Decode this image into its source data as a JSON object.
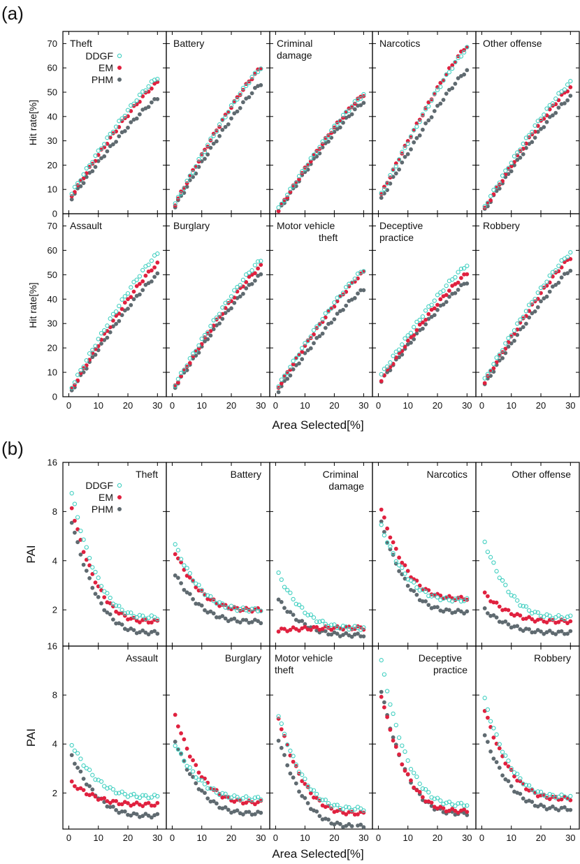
{
  "figure": {
    "panel_a_label": "(a)",
    "panel_b_label": "(b)",
    "xlabel": "Area Selected[%]",
    "colors": {
      "DDGF": "#3fcfc0",
      "EM": "#e0213f",
      "PHM": "#5f6a70"
    }
  },
  "chart_data": [
    {
      "type": "scatter",
      "id": "a",
      "ylabel": "Hit rate[%]",
      "xlabel": "Area Selected[%]",
      "xlim": [
        -2,
        33
      ],
      "ylim": [
        0,
        75
      ],
      "xticks": [
        0,
        10,
        20,
        30
      ],
      "yticks": [
        0,
        10,
        20,
        30,
        40,
        50,
        60,
        70
      ],
      "legend": [
        "DDGF",
        "EM",
        "PHM"
      ],
      "legend_location": "top-left of first subplot",
      "panels": [
        {
          "title": "Theft",
          "ddgf_end": 56,
          "em_end": 54,
          "phm_end": 47.5,
          "ddgf_start": 8.5,
          "em_start": 7.5,
          "phm_start": 6.5
        },
        {
          "title": "Battery",
          "ddgf_end": 60,
          "em_end": 60,
          "phm_end": 53.5,
          "ddgf_start": 4,
          "em_start": 4,
          "phm_start": 3
        },
        {
          "title": "Criminal damage",
          "ddgf_end": 49,
          "em_end": 49,
          "phm_end": 46,
          "ddgf_start": 2,
          "em_start": 1.5,
          "phm_start": 1
        },
        {
          "title": "Narcotics",
          "ddgf_end": 68,
          "em_end": 69,
          "phm_end": 59,
          "ddgf_start": 8,
          "em_start": 8,
          "phm_start": 6
        },
        {
          "title": "Other offense",
          "ddgf_end": 54,
          "em_end": 52,
          "phm_end": 48,
          "ddgf_start": 3,
          "em_start": 2,
          "phm_start": 1.5
        },
        {
          "title": "Assault",
          "ddgf_end": 58.5,
          "em_end": 54.5,
          "phm_end": 50,
          "ddgf_start": 4,
          "em_start": 3,
          "phm_start": 2.5
        },
        {
          "title": "Burglary",
          "ddgf_end": 56,
          "em_end": 53.5,
          "phm_end": 50,
          "ddgf_start": 5,
          "em_start": 4.5,
          "phm_start": 4
        },
        {
          "title": "Motor vehicle theft",
          "ddgf_end": 52,
          "em_end": 51,
          "phm_end": 44,
          "ddgf_start": 4.5,
          "em_start": 4,
          "phm_start": 2.5
        },
        {
          "title": "Deceptive practice",
          "ddgf_end": 54,
          "em_end": 50.5,
          "phm_end": 47,
          "ddgf_start": 9,
          "em_start": 7,
          "phm_start": 6.5
        },
        {
          "title": "Robbery",
          "ddgf_end": 59,
          "em_end": 57,
          "phm_end": 52,
          "ddgf_start": 7,
          "em_start": 6,
          "phm_start": 5
        }
      ]
    },
    {
      "type": "scatter",
      "id": "b",
      "ylabel": "PAI",
      "xlabel": "Area Selected[%]",
      "yscale": "log2",
      "xlim": [
        -2,
        33
      ],
      "ylim": [
        1.2,
        16
      ],
      "xticks": [
        0,
        10,
        20,
        30
      ],
      "yticks": [
        2,
        4,
        8,
        16
      ],
      "legend": [
        "DDGF",
        "EM",
        "PHM"
      ],
      "legend_location": "top-left of first subplot",
      "panels": [
        {
          "title": "Theft",
          "ddgf_start": 10.5,
          "em_start": 8.5,
          "phm_start": 7,
          "ddgf_end": 1.8,
          "em_end": 1.7,
          "phm_end": 1.45
        },
        {
          "title": "Battery",
          "ddgf_start": 5,
          "em_start": 4.5,
          "phm_start": 3.3,
          "ddgf_end": 2.0,
          "em_end": 2.0,
          "phm_end": 1.7
        },
        {
          "title": "Criminal damage",
          "ddgf_start": 3.3,
          "em_start": 1.5,
          "phm_start": 2.3,
          "ddgf_end": 1.55,
          "em_end": 1.55,
          "phm_end": 1.4
        },
        {
          "title": "Narcotics",
          "ddgf_start": 6.5,
          "em_start": 8.2,
          "phm_start": 6.8,
          "ddgf_end": 2.3,
          "em_end": 2.35,
          "phm_end": 1.95
        },
        {
          "title": "Other offense",
          "ddgf_start": 5.2,
          "em_start": 2.5,
          "phm_start": 2.0,
          "ddgf_end": 1.8,
          "em_end": 1.7,
          "phm_end": 1.45
        },
        {
          "title": "Assault",
          "ddgf_start": 4,
          "em_start": 2.3,
          "phm_start": 3.4,
          "ddgf_end": 1.9,
          "em_end": 1.7,
          "phm_end": 1.45
        },
        {
          "title": "Burglary",
          "ddgf_start": 4,
          "em_start": 6,
          "phm_start": 4.2,
          "ddgf_end": 1.85,
          "em_end": 1.75,
          "phm_end": 1.5
        },
        {
          "title": "Motor vehicle theft",
          "ddgf_start": 6,
          "em_start": 5.8,
          "phm_start": 4.3,
          "ddgf_end": 1.6,
          "em_end": 1.5,
          "phm_end": 1.25
        },
        {
          "title": "Deceptive practice",
          "ddgf_start": 13,
          "em_start": 8,
          "phm_start": 8.5,
          "ddgf_end": 1.7,
          "em_end": 1.55,
          "phm_end": 1.5
        },
        {
          "title": "Robbery",
          "ddgf_start": 7.5,
          "em_start": 6.5,
          "phm_start": 4.5,
          "ddgf_end": 1.9,
          "em_end": 1.85,
          "phm_end": 1.6
        }
      ]
    }
  ]
}
